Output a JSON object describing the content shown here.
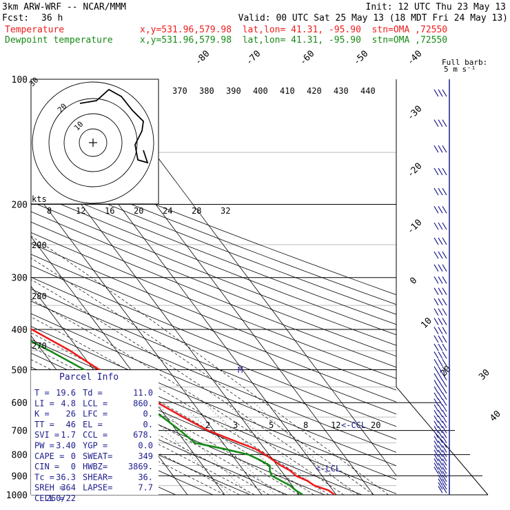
{
  "header": {
    "model": "3km ARW-WRF -- NCAR/MMM",
    "init": "Init: 12 UTC Thu 23 May 13",
    "fcst_label": "Fcst:",
    "fcst_value": "36 h",
    "valid": "Valid: 00 UTC Sat 25 May 13 (18 MDT Fri 24 May 13)",
    "temp_label": "Temperature",
    "temp_info": "x,y=531.96,579.98  lat,lon= 41.31, -95.90  stn=OMA ,72550",
    "dew_label": "Dewpoint temperature",
    "dew_info": "x,y=531.96,579.98  lat,lon= 41.31, -95.90  stn=OMA ,72550",
    "barb_label_1": "Full barb:",
    "barb_label_2": "5 m s⁻¹"
  },
  "colors": {
    "temperature": "#ee1c1c",
    "dewpoint": "#178a17",
    "parcel": "#1c1c8e"
  },
  "chart_data": {
    "type": "line",
    "title": "",
    "y_axis": "pressure (hPa)",
    "pressure_levels": [
      "100",
      "200",
      "300",
      "400",
      "500",
      "600",
      "700",
      "800",
      "900",
      "1000"
    ],
    "pressure_ticks": [
      100,
      200,
      300,
      400,
      500,
      600,
      700,
      800,
      900,
      1000
    ],
    "ylim": [
      1000,
      100
    ],
    "log_pressure": true,
    "isotherm_labels_deg_c": [
      "-80",
      "-70",
      "-60",
      "-50",
      "-40",
      "-30",
      "-20",
      "-10",
      "0",
      "10",
      "20",
      "30",
      "40"
    ],
    "isotherm_values": [
      -80,
      -70,
      -60,
      -50,
      -40,
      -30,
      -20,
      -10,
      0,
      10,
      20,
      30,
      40
    ],
    "dry_adiabat_labels": [
      "290",
      "280",
      "270"
    ],
    "dry_adiabat_values": [
      290,
      280,
      270
    ],
    "moist_adiabat_labels": [
      "370",
      "380",
      "390",
      "400",
      "410",
      "420",
      "430",
      "440"
    ],
    "moist_adiabat_values": [
      370,
      380,
      390,
      400,
      410,
      420,
      430,
      440
    ],
    "mixing_ratio_labels": [
      "2",
      "3",
      "5",
      "8",
      "12",
      "20"
    ],
    "mixing_ratio_values": [
      2,
      3,
      5,
      8,
      12,
      20
    ],
    "hodograph_ring_labels": [
      "30",
      "20",
      "10"
    ],
    "hodograph_speed_labels": [
      "8",
      "12",
      "16",
      "20",
      "24",
      "28",
      "32"
    ],
    "hodograph_speed_unit": "kts",
    "series": [
      {
        "name": "Temperature",
        "p": [
          1000,
          975,
          950,
          925,
          900,
          875,
          850,
          825,
          800,
          775,
          750,
          700,
          650,
          600,
          550,
          500,
          450,
          400,
          350,
          300,
          250,
          200,
          175,
          150,
          125,
          100
        ],
        "t": [
          19.6,
          18.8,
          16.0,
          15.0,
          13.0,
          12.5,
          11.0,
          10.0,
          9.0,
          7.5,
          4.5,
          -1.5,
          -5.5,
          -9.5,
          -14.0,
          -18.5,
          -22.5,
          -28.5,
          -35.0,
          -42.0,
          -51.0,
          -60.0,
          -61.0,
          -60.0,
          -62.0,
          -63.0
        ]
      },
      {
        "name": "Dewpoint temperature",
        "p": [
          1000,
          975,
          950,
          925,
          900,
          875,
          850,
          825,
          800,
          775,
          750,
          700,
          650,
          600,
          550,
          500,
          450,
          400,
          350,
          300,
          250,
          200,
          175,
          150,
          125,
          100
        ],
        "t": [
          11.0,
          10.0,
          9.5,
          8.0,
          6.5,
          7.0,
          8.0,
          6.5,
          4.5,
          -1.0,
          -7.5,
          -9.0,
          -11.0,
          -14.0,
          -18.0,
          -22.5,
          -28.0,
          -35.0,
          -42.0,
          -50.0,
          -59.0,
          -67.0,
          -70.0,
          -71.0,
          -71.0,
          -72.0
        ]
      }
    ],
    "annotations": {
      "lcl_marker": "<-LCL",
      "ccl_marker": "<-CCL",
      "m_marker": "M"
    }
  },
  "parcel_info": {
    "title": "Parcel Info",
    "rows": [
      [
        "T  =",
        "19.6",
        "Td =",
        "11.0"
      ],
      [
        "LI =",
        "4.8",
        "LCL =",
        "860."
      ],
      [
        "K  =",
        "26",
        "LFC =",
        "0."
      ],
      [
        "TT =",
        "46",
        "EL  =",
        "0."
      ],
      [
        "SVI =",
        "1.7",
        "CCL =",
        "678."
      ],
      [
        "PW =",
        "3.40",
        "YGP =",
        "0.0"
      ],
      [
        "CAPE =",
        "0",
        "SWEAT=",
        "349"
      ],
      [
        "CIN =",
        "0",
        "HWBZ=",
        "3869."
      ],
      [
        "Tc =",
        "36.3",
        "SHEAR=",
        "36."
      ],
      [
        "SREH =",
        "364",
        "LAPSE=",
        "7.7"
      ],
      [
        "CELL =",
        "260/22",
        "",
        ""
      ]
    ]
  }
}
